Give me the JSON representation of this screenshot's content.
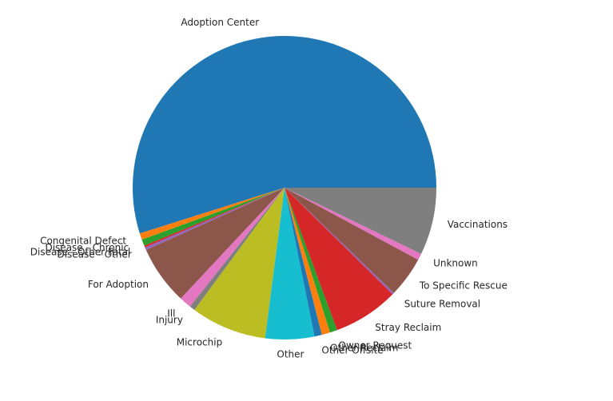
{
  "chart_data": {
    "type": "pie",
    "start_angle_deg": 0,
    "direction": "counterclockwise",
    "slices": [
      {
        "label": "Adoption Center",
        "value": 55.8,
        "color": "#1f77b4"
      },
      {
        "label": "Congenital Defect",
        "value": 0.7,
        "color": "#ff7f0e"
      },
      {
        "label": "Disease - Chronic",
        "value": 0.7,
        "color": "#2ca02c"
      },
      {
        "label": "Disease - Other Fatal",
        "value": 0.2,
        "color": "#d62728"
      },
      {
        "label": "Disease - Other",
        "value": 0.3,
        "color": "#9467bd"
      },
      {
        "label": "For Adoption",
        "value": 6.4,
        "color": "#8c564b"
      },
      {
        "label": "Ill",
        "value": 1.3,
        "color": "#e377c2"
      },
      {
        "label": "Injury",
        "value": 0.6,
        "color": "#7f7f7f"
      },
      {
        "label": "Microchip",
        "value": 8.2,
        "color": "#bcbd22"
      },
      {
        "label": "Other",
        "value": 5.3,
        "color": "#17becf"
      },
      {
        "label": "Other Offsite",
        "value": 0.8,
        "color": "#1f77b4"
      },
      {
        "label": "Other Reclaim",
        "value": 0.9,
        "color": "#ff7f0e"
      },
      {
        "label": "Owner Request",
        "value": 0.8,
        "color": "#2ca02c"
      },
      {
        "label": "Stray Reclaim",
        "value": 7.1,
        "color": "#d62728"
      },
      {
        "label": "Suture Removal",
        "value": 0.2,
        "color": "#9467bd"
      },
      {
        "label": "To Specific Rescue",
        "value": 4.4,
        "color": "#8c564b"
      },
      {
        "label": "Unknown",
        "value": 0.7,
        "color": "#e377c2"
      },
      {
        "label": "Vaccinations",
        "value": 7.3,
        "color": "#7f7f7f"
      }
    ]
  }
}
